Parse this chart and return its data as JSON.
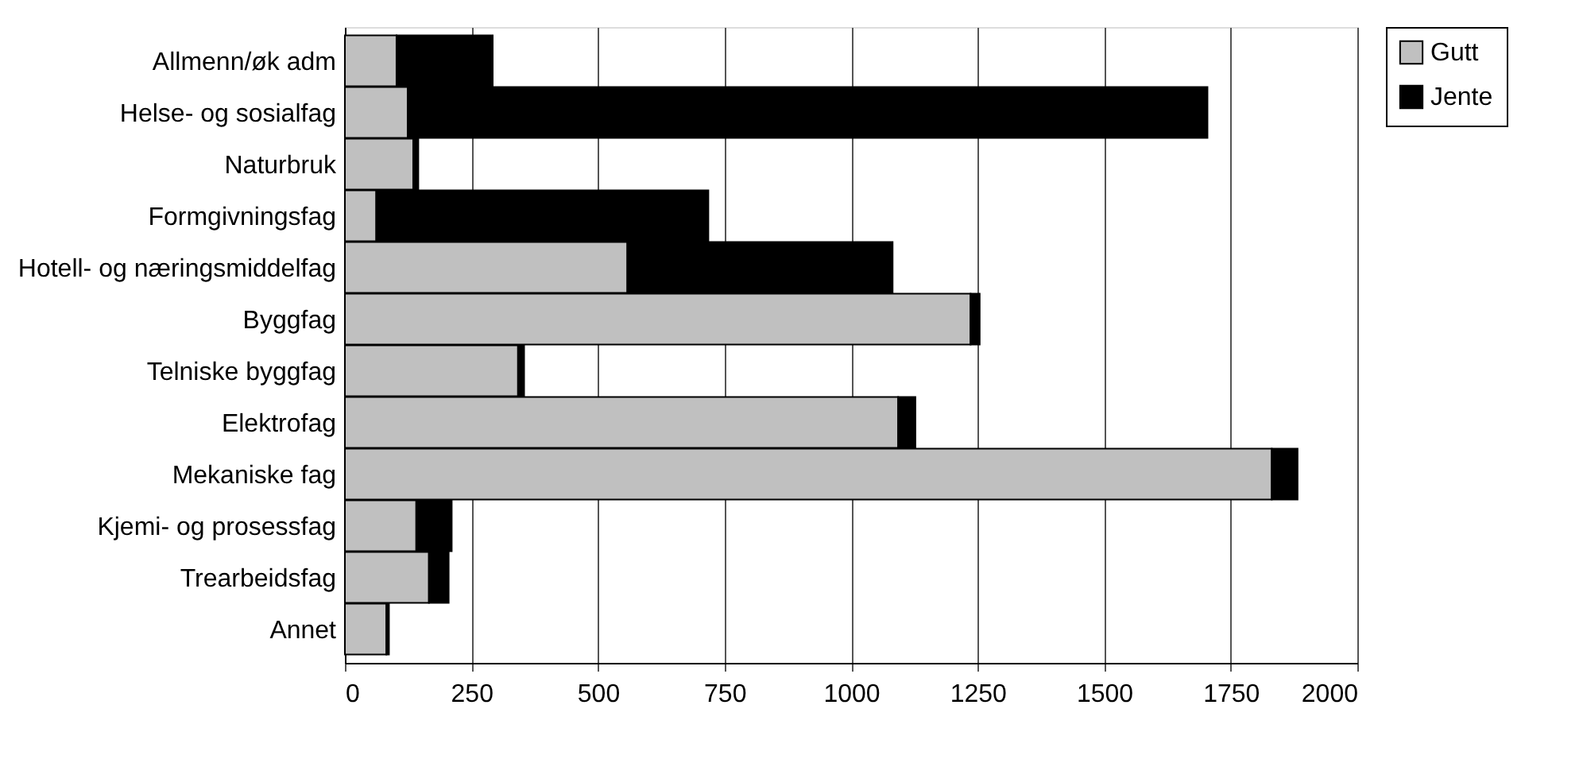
{
  "chart_data": {
    "type": "bar",
    "orientation": "horizontal",
    "stacked": true,
    "categories": [
      "Allmenn/øk adm",
      "Helse- og sosialfag",
      "Naturbruk",
      "Formgivningsfag",
      "Hotell- og næringsmiddelfag",
      "Byggfag",
      "Telniske byggfag",
      "Elektrofag",
      "Mekaniske fag",
      "Kjemi- og prosessfag",
      "Trearbeidsfag",
      "Annet"
    ],
    "series": [
      {
        "name": "Gutt",
        "color": "#c0c0c0",
        "values": [
          102,
          124,
          135,
          62,
          558,
          1236,
          342,
          1093,
          1831,
          141,
          166,
          82
        ]
      },
      {
        "name": "Jente",
        "color": "#000000",
        "values": [
          190,
          1580,
          10,
          656,
          524,
          18,
          12,
          34,
          51,
          70,
          39,
          5
        ]
      }
    ],
    "xlim": [
      0,
      2000
    ],
    "xticks": [
      0,
      250,
      500,
      750,
      1000,
      1250,
      1500,
      1750,
      2000
    ],
    "grid": "x",
    "legend": "right"
  }
}
